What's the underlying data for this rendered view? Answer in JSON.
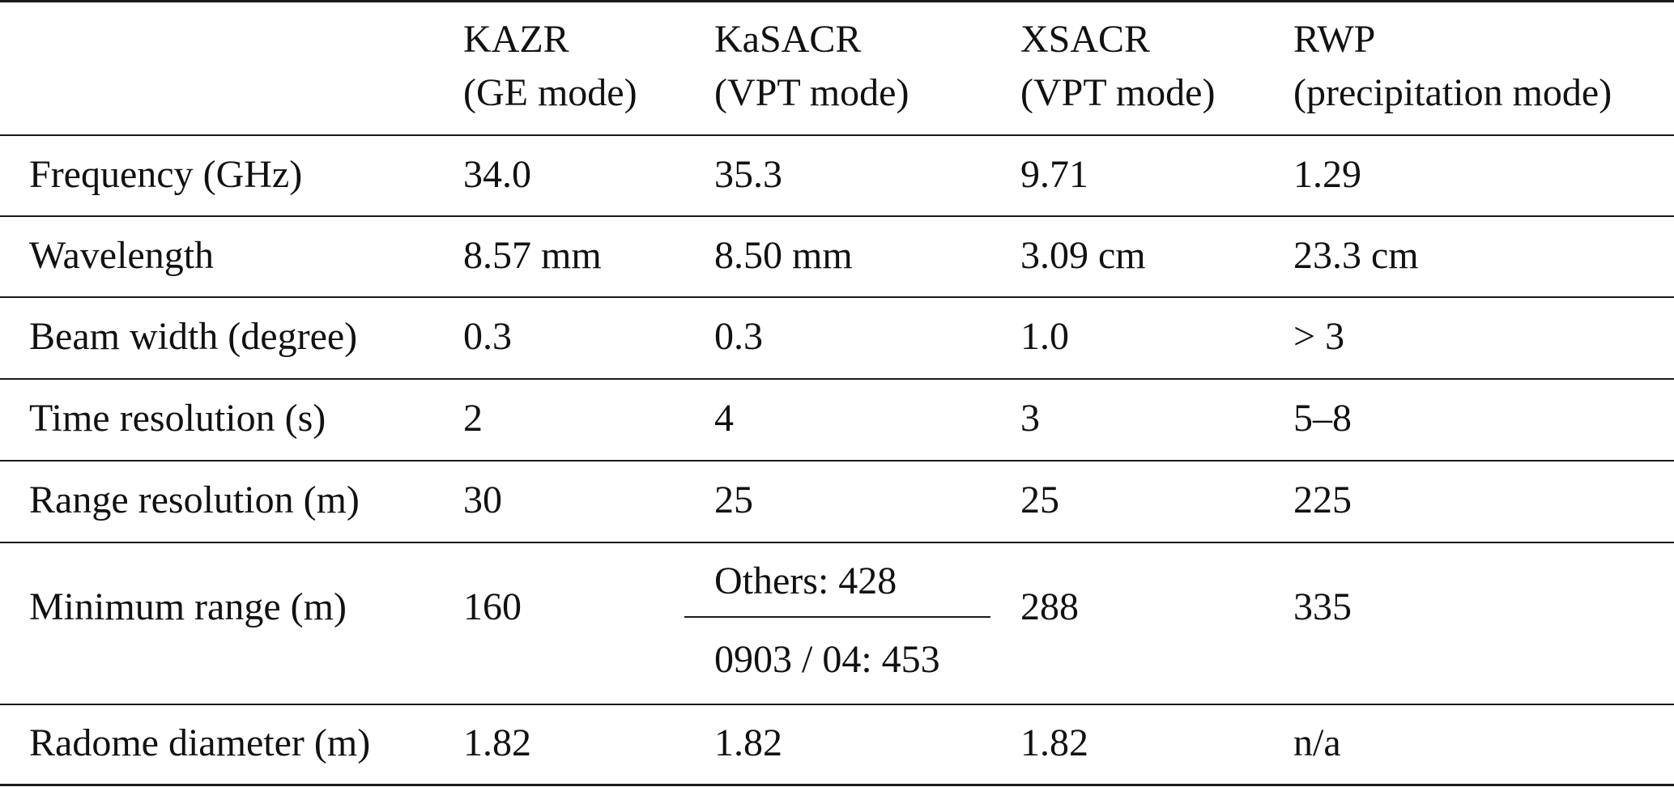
{
  "table": {
    "columns": [
      {
        "line1": "",
        "line2": ""
      },
      {
        "line1": "KAZR",
        "line2": "(GE mode)"
      },
      {
        "line1": "KaSACR",
        "line2": "(VPT mode)"
      },
      {
        "line1": "XSACR",
        "line2": "(VPT mode)"
      },
      {
        "line1": "RWP",
        "line2": "(precipitation mode)"
      }
    ],
    "rows": [
      {
        "label": "Frequency (GHz)",
        "kazr": "34.0",
        "kasacr": "35.3",
        "xsacr": "9.71",
        "rwp": "1.29"
      },
      {
        "label": "Wavelength",
        "kazr": "8.57 mm",
        "kasacr": "8.50 mm",
        "xsacr": "3.09 cm",
        "rwp": "23.3 cm"
      },
      {
        "label": "Beam width (degree)",
        "kazr": "0.3",
        "kasacr": "0.3",
        "xsacr": "1.0",
        "rwp": "> 3"
      },
      {
        "label": "Time resolution (s)",
        "kazr": "2",
        "kasacr": "4",
        "xsacr": "3",
        "rwp": "5–8"
      },
      {
        "label": "Range resolution (m)",
        "kazr": "30",
        "kasacr": "25",
        "xsacr": "25",
        "rwp": "225"
      },
      {
        "label": "Minimum range (m)",
        "kazr": "160",
        "kasacr_top": "Others: 428",
        "kasacr_bottom": "0903 / 04: 453",
        "xsacr": "288",
        "rwp": "335"
      },
      {
        "label": "Radome diameter (m)",
        "kazr": "1.82",
        "kasacr": "1.82",
        "xsacr": "1.82",
        "rwp": "n/a"
      }
    ]
  }
}
